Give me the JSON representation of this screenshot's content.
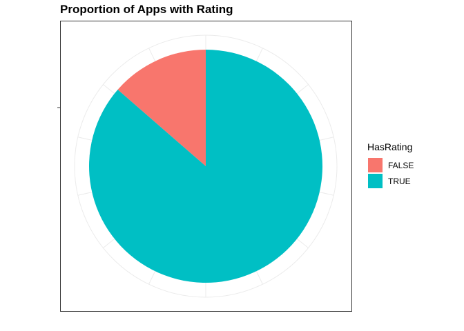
{
  "chart_data": {
    "type": "pie",
    "title": "Proportion of Apps with Rating",
    "legend": {
      "title": "HasRating",
      "placement": "right"
    },
    "slices": [
      {
        "label": "FALSE",
        "value": 0.136,
        "color": "#F8766D"
      },
      {
        "label": "TRUE",
        "value": 0.864,
        "color": "#00BFC4"
      }
    ],
    "grid": true,
    "panel_border": true
  }
}
